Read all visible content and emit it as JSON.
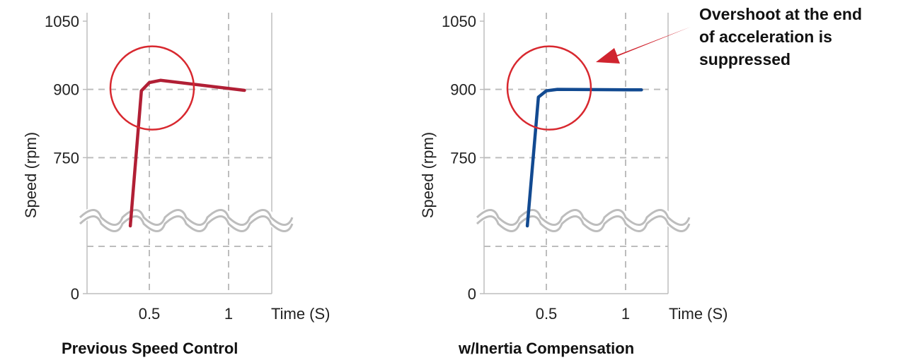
{
  "chart_data": [
    {
      "type": "line",
      "caption": "Previous Speed Control",
      "xlabel": "Time (S)",
      "ylabel": "Speed (rpm)",
      "xlim": [
        0,
        1.1
      ],
      "ylim": [
        0,
        1050
      ],
      "x_ticks": [
        0.5,
        1
      ],
      "x_tick_labels": [
        "0.5",
        "1"
      ],
      "y_ticks": [
        0,
        750,
        900,
        1050
      ],
      "y_tick_labels": [
        "0",
        "750",
        "900",
        "1050"
      ],
      "axis_break": true,
      "grid": true,
      "color": "#b11f35",
      "series": [
        {
          "x": [
            0.38,
            0.45,
            0.5,
            0.57,
            1.1
          ],
          "y": [
            600,
            897,
            915,
            920,
            898
          ]
        }
      ]
    },
    {
      "type": "line",
      "caption": "w/Inertia Compensation",
      "xlabel": "Time (S)",
      "ylabel": "Speed (rpm)",
      "xlim": [
        0,
        1.1
      ],
      "ylim": [
        0,
        1050
      ],
      "x_ticks": [
        0.5,
        1
      ],
      "x_tick_labels": [
        "0.5",
        "1"
      ],
      "y_ticks": [
        0,
        750,
        900,
        1050
      ],
      "y_tick_labels": [
        "0",
        "750",
        "900",
        "1050"
      ],
      "axis_break": true,
      "grid": true,
      "color": "#124a91",
      "series": [
        {
          "x": [
            0.38,
            0.45,
            0.5,
            0.57,
            1.1
          ],
          "y": [
            600,
            883,
            897,
            900,
            899
          ]
        }
      ]
    }
  ],
  "annotation": {
    "lines": [
      "Overshoot at the end",
      "of acceleration is",
      "suppressed"
    ],
    "arrow_color": "#d0242f"
  },
  "highlight_color": "#d8282f"
}
